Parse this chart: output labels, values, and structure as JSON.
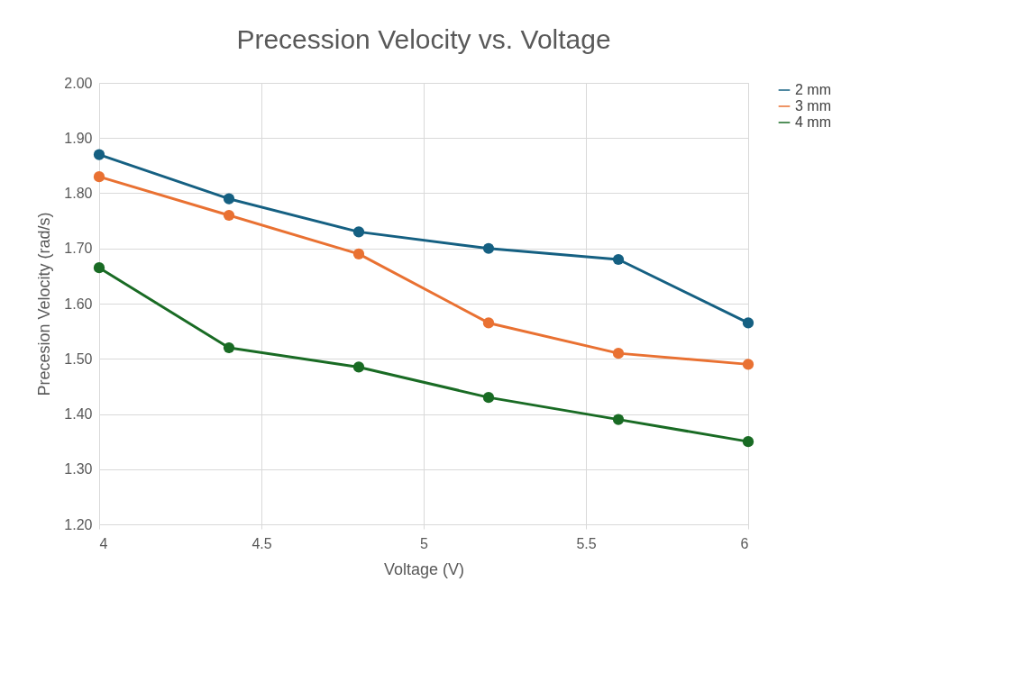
{
  "chart_data": {
    "type": "line",
    "title": "Precession Velocity vs. Voltage",
    "xlabel": "Voltage (V)",
    "ylabel": "Precesion Velocity (rad/s)",
    "x": [
      4,
      4.4,
      4.8,
      5.2,
      5.6,
      6
    ],
    "series": [
      {
        "name": "2 mm",
        "color": "#156082",
        "values": [
          1.87,
          1.79,
          1.73,
          1.7,
          1.68,
          1.565
        ]
      },
      {
        "name": "3 mm",
        "color": "#e97132",
        "values": [
          1.83,
          1.76,
          1.69,
          1.565,
          1.51,
          1.49
        ]
      },
      {
        "name": "4 mm",
        "color": "#196b24",
        "values": [
          1.665,
          1.52,
          1.485,
          1.43,
          1.39,
          1.35
        ]
      }
    ],
    "xlim": [
      4,
      6
    ],
    "xticks": [
      4,
      4.5,
      5,
      5.5,
      6
    ],
    "ylim": [
      1.2,
      2.0
    ],
    "yticks": [
      {
        "value": 1.2,
        "label": "1.20"
      },
      {
        "value": 1.3,
        "label": "1.30"
      },
      {
        "value": 1.4,
        "label": "1.40"
      },
      {
        "value": 1.5,
        "label": "1.50"
      },
      {
        "value": 1.6,
        "label": "1.60"
      },
      {
        "value": 1.7,
        "label": "1.70"
      },
      {
        "value": 1.8,
        "label": "1.80"
      },
      {
        "value": 1.9,
        "label": "1.90"
      },
      {
        "value": 2.0,
        "label": "2.00"
      }
    ],
    "grid": true,
    "legend": "right",
    "marker": "circle",
    "line_style": "solid"
  }
}
